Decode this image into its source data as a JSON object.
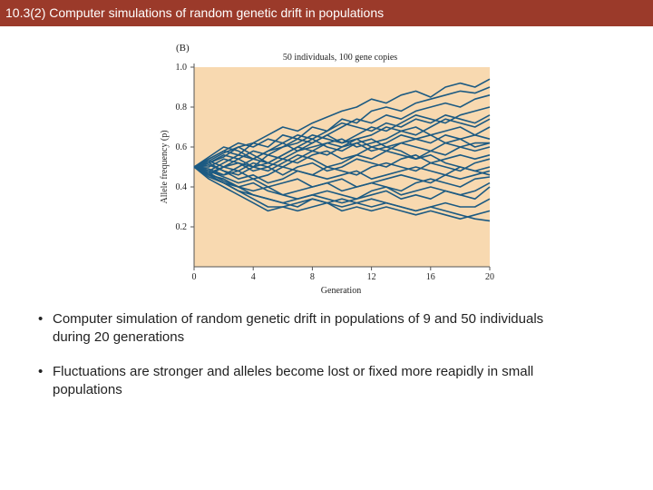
{
  "slide_title": "10.3(2)  Computer simulations of random genetic drift in populations",
  "bullets": [
    "Computer simulation of random genetic drift in populations of 9 and 50 individuals during 20 generations",
    "Fluctuations are stronger and alleles become lost or fixed more reapidly in small populations"
  ],
  "bullet_symbol": "•",
  "colors": {
    "title_bar": "#9b3a2a",
    "plot_bg": "#f8d9b0",
    "line": "#1c5a82"
  },
  "chart_data": {
    "type": "line",
    "panel_label": "(B)",
    "title": "50 individuals, 100 gene copies",
    "xlabel": "Generation",
    "ylabel": "Allele frequency (p)",
    "xlim": [
      0,
      20
    ],
    "ylim": [
      0,
      1.0
    ],
    "x_ticks": [
      "0",
      "4",
      "8",
      "12",
      "16",
      "20"
    ],
    "y_ticks": [
      "0.2",
      "0.4",
      "0.6",
      "0.8",
      "1.0"
    ],
    "grid": false,
    "x": [
      0,
      1,
      2,
      3,
      4,
      5,
      6,
      7,
      8,
      9,
      10,
      11,
      12,
      13,
      14,
      15,
      16,
      17,
      18,
      19,
      20
    ],
    "series": [
      {
        "values": [
          0.5,
          0.52,
          0.55,
          0.6,
          0.62,
          0.66,
          0.7,
          0.68,
          0.72,
          0.75,
          0.78,
          0.8,
          0.84,
          0.82,
          0.86,
          0.88,
          0.85,
          0.9,
          0.92,
          0.9,
          0.94
        ]
      },
      {
        "values": [
          0.5,
          0.54,
          0.58,
          0.56,
          0.62,
          0.6,
          0.66,
          0.64,
          0.7,
          0.68,
          0.74,
          0.72,
          0.78,
          0.8,
          0.78,
          0.82,
          0.84,
          0.86,
          0.88,
          0.87,
          0.9
        ]
      },
      {
        "values": [
          0.5,
          0.48,
          0.52,
          0.56,
          0.54,
          0.58,
          0.6,
          0.64,
          0.62,
          0.66,
          0.7,
          0.74,
          0.72,
          0.76,
          0.74,
          0.78,
          0.8,
          0.82,
          0.8,
          0.84,
          0.86
        ]
      },
      {
        "values": [
          0.5,
          0.53,
          0.5,
          0.54,
          0.58,
          0.56,
          0.6,
          0.62,
          0.66,
          0.64,
          0.62,
          0.66,
          0.7,
          0.68,
          0.72,
          0.76,
          0.74,
          0.72,
          0.76,
          0.78,
          0.8
        ]
      },
      {
        "values": [
          0.5,
          0.46,
          0.5,
          0.52,
          0.5,
          0.56,
          0.54,
          0.58,
          0.6,
          0.62,
          0.6,
          0.64,
          0.66,
          0.7,
          0.68,
          0.66,
          0.7,
          0.74,
          0.72,
          0.7,
          0.74
        ]
      },
      {
        "values": [
          0.5,
          0.52,
          0.56,
          0.54,
          0.5,
          0.52,
          0.56,
          0.6,
          0.58,
          0.62,
          0.64,
          0.6,
          0.62,
          0.64,
          0.68,
          0.7,
          0.66,
          0.68,
          0.7,
          0.66,
          0.7
        ]
      },
      {
        "values": [
          0.5,
          0.48,
          0.46,
          0.5,
          0.54,
          0.52,
          0.5,
          0.54,
          0.58,
          0.56,
          0.6,
          0.62,
          0.58,
          0.6,
          0.62,
          0.64,
          0.66,
          0.62,
          0.64,
          0.66,
          0.64
        ]
      },
      {
        "values": [
          0.5,
          0.5,
          0.54,
          0.52,
          0.48,
          0.5,
          0.54,
          0.52,
          0.56,
          0.58,
          0.54,
          0.56,
          0.6,
          0.58,
          0.62,
          0.6,
          0.58,
          0.62,
          0.6,
          0.62,
          0.62
        ]
      },
      {
        "values": [
          0.5,
          0.52,
          0.48,
          0.46,
          0.5,
          0.48,
          0.52,
          0.56,
          0.54,
          0.5,
          0.52,
          0.56,
          0.54,
          0.58,
          0.56,
          0.54,
          0.58,
          0.56,
          0.6,
          0.58,
          0.6
        ]
      },
      {
        "values": [
          0.5,
          0.47,
          0.5,
          0.48,
          0.52,
          0.5,
          0.46,
          0.5,
          0.52,
          0.48,
          0.5,
          0.54,
          0.52,
          0.5,
          0.54,
          0.56,
          0.52,
          0.54,
          0.56,
          0.54,
          0.56
        ]
      },
      {
        "values": [
          0.5,
          0.49,
          0.46,
          0.48,
          0.44,
          0.46,
          0.5,
          0.48,
          0.46,
          0.5,
          0.48,
          0.46,
          0.5,
          0.52,
          0.5,
          0.48,
          0.52,
          0.5,
          0.48,
          0.52,
          0.54
        ]
      },
      {
        "values": [
          0.5,
          0.51,
          0.48,
          0.44,
          0.46,
          0.42,
          0.44,
          0.48,
          0.46,
          0.44,
          0.46,
          0.48,
          0.44,
          0.46,
          0.48,
          0.5,
          0.48,
          0.46,
          0.5,
          0.48,
          0.5
        ]
      },
      {
        "values": [
          0.5,
          0.48,
          0.45,
          0.42,
          0.44,
          0.4,
          0.42,
          0.44,
          0.4,
          0.42,
          0.44,
          0.4,
          0.42,
          0.44,
          0.46,
          0.44,
          0.42,
          0.46,
          0.44,
          0.46,
          0.48
        ]
      },
      {
        "values": [
          0.5,
          0.46,
          0.44,
          0.4,
          0.38,
          0.4,
          0.36,
          0.38,
          0.4,
          0.42,
          0.38,
          0.4,
          0.42,
          0.4,
          0.38,
          0.42,
          0.44,
          0.42,
          0.4,
          0.44,
          0.45
        ]
      },
      {
        "values": [
          0.5,
          0.47,
          0.43,
          0.4,
          0.42,
          0.38,
          0.36,
          0.34,
          0.36,
          0.38,
          0.36,
          0.34,
          0.38,
          0.4,
          0.36,
          0.38,
          0.4,
          0.38,
          0.36,
          0.38,
          0.42
        ]
      },
      {
        "values": [
          0.5,
          0.45,
          0.42,
          0.38,
          0.36,
          0.34,
          0.32,
          0.34,
          0.36,
          0.34,
          0.32,
          0.34,
          0.36,
          0.38,
          0.34,
          0.36,
          0.34,
          0.38,
          0.36,
          0.34,
          0.4
        ]
      },
      {
        "values": [
          0.5,
          0.46,
          0.42,
          0.38,
          0.34,
          0.3,
          0.3,
          0.32,
          0.34,
          0.32,
          0.3,
          0.32,
          0.34,
          0.32,
          0.3,
          0.28,
          0.3,
          0.32,
          0.3,
          0.3,
          0.34
        ]
      },
      {
        "values": [
          0.5,
          0.44,
          0.4,
          0.36,
          0.32,
          0.28,
          0.3,
          0.28,
          0.3,
          0.32,
          0.28,
          0.3,
          0.28,
          0.3,
          0.28,
          0.26,
          0.28,
          0.26,
          0.24,
          0.26,
          0.28
        ]
      },
      {
        "values": [
          0.5,
          0.46,
          0.42,
          0.4,
          0.36,
          0.34,
          0.32,
          0.3,
          0.34,
          0.32,
          0.34,
          0.32,
          0.3,
          0.32,
          0.3,
          0.28,
          0.3,
          0.28,
          0.26,
          0.24,
          0.23
        ]
      },
      {
        "values": [
          0.5,
          0.54,
          0.58,
          0.62,
          0.6,
          0.64,
          0.62,
          0.58,
          0.62,
          0.66,
          0.62,
          0.64,
          0.6,
          0.62,
          0.66,
          0.64,
          0.62,
          0.66,
          0.64,
          0.6,
          0.62
        ]
      },
      {
        "values": [
          0.5,
          0.55,
          0.6,
          0.58,
          0.54,
          0.58,
          0.62,
          0.66,
          0.64,
          0.6,
          0.58,
          0.62,
          0.64,
          0.6,
          0.58,
          0.54,
          0.56,
          0.52,
          0.5,
          0.48,
          0.46
        ]
      },
      {
        "values": [
          0.5,
          0.53,
          0.57,
          0.6,
          0.56,
          0.52,
          0.56,
          0.6,
          0.64,
          0.68,
          0.72,
          0.7,
          0.68,
          0.72,
          0.7,
          0.74,
          0.72,
          0.76,
          0.74,
          0.72,
          0.76
        ]
      }
    ]
  }
}
